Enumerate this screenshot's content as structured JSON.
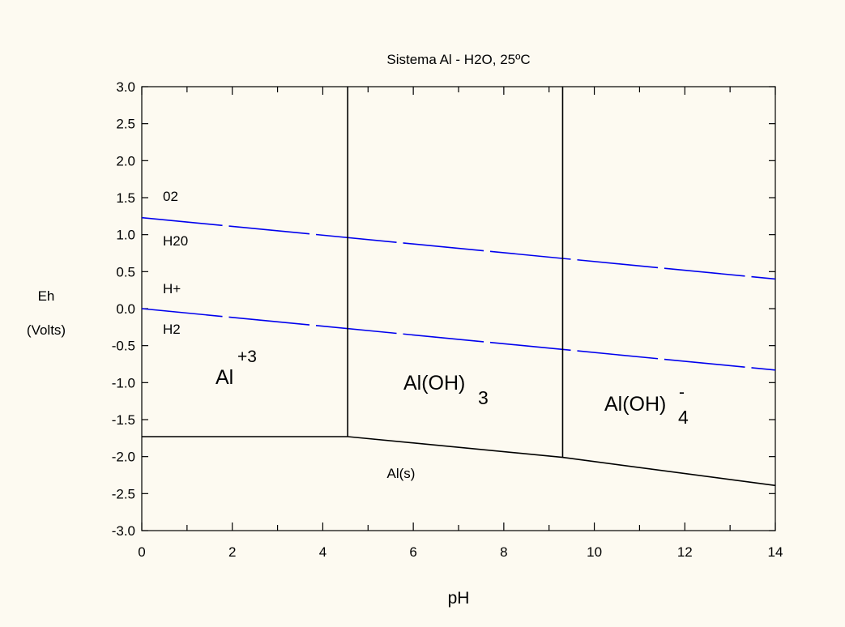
{
  "chart_data": {
    "type": "line",
    "title": "Sistema Al - H2O, 25ºC",
    "xlabel": "pH",
    "ylabel_line1": "Eh",
    "ylabel_line2": "(Volts)",
    "xlim": [
      0,
      14
    ],
    "ylim": [
      -3.0,
      3.0
    ],
    "x_ticks": [
      0,
      2,
      4,
      6,
      8,
      10,
      12,
      14
    ],
    "x_tick_labels": [
      "0",
      "2",
      "4",
      "6",
      "8",
      "10",
      "12",
      "14"
    ],
    "x_minor_step": 1,
    "y_ticks": [
      3.0,
      2.5,
      2.0,
      1.5,
      1.0,
      0.5,
      0.0,
      -0.5,
      -1.0,
      -1.5,
      -2.0,
      -2.5,
      -3.0
    ],
    "y_tick_labels": [
      "3.0",
      "2.5",
      "2.0",
      "1.5",
      "1.0",
      "0.5",
      "0.0",
      "-0.5",
      "-1.0",
      "-1.5",
      "-2.0",
      "-2.5",
      "-3.0"
    ],
    "grid": false,
    "colors": {
      "boundary": "#000000",
      "water": "#0000ee",
      "background": "#fdfaf1"
    },
    "boundaries": [
      {
        "x": [
          0,
          4.55
        ],
        "y": [
          -1.73,
          -1.73
        ]
      },
      {
        "x": [
          4.55,
          9.3,
          14
        ],
        "y": [
          -1.73,
          -2.01,
          -2.39
        ]
      },
      {
        "x": [
          4.55,
          4.55
        ],
        "y": [
          -1.73,
          3.0
        ]
      },
      {
        "x": [
          9.3,
          9.3
        ],
        "y": [
          -2.01,
          3.0
        ]
      }
    ],
    "water_lines": [
      {
        "x": [
          0,
          14
        ],
        "y": [
          1.23,
          0.4
        ]
      },
      {
        "x": [
          0,
          14
        ],
        "y": [
          0.0,
          -0.83
        ]
      }
    ],
    "labels": {
      "o2": "02",
      "h2o": "H20",
      "hplus": "H+",
      "h2": "H2",
      "al3_base": "Al",
      "al3_sup": "+3",
      "aloh3_base": "Al(OH)",
      "aloh3_sub": "3",
      "aloh4_base": "Al(OH)",
      "aloh4_sup": "-",
      "aloh4_sub": "4",
      "als": "Al(s)"
    }
  }
}
